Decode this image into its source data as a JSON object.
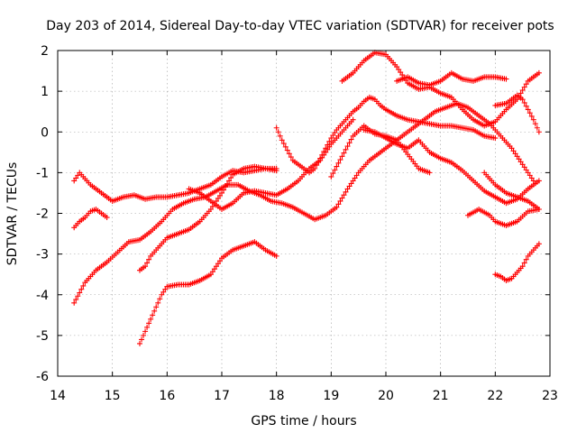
{
  "chart_data": {
    "type": "scatter",
    "title": "Day 203 of 2014, Sidereal Day-to-day VTEC variation (SDTVAR) for receiver pots",
    "xlabel": "GPS time / hours",
    "ylabel": "SDTVAR / TECUs",
    "xlim": [
      14,
      23
    ],
    "ylim": [
      -6,
      2
    ],
    "xticks": [
      "14",
      "15",
      "16",
      "17",
      "18",
      "19",
      "20",
      "21",
      "22",
      "23"
    ],
    "yticks": [
      "-6",
      "-5",
      "-4",
      "-3",
      "-2",
      "-1",
      "0",
      "1",
      "2"
    ],
    "grid": true,
    "marker": "plus",
    "color": "#ff0000",
    "series": [
      {
        "x": [
          14.3,
          14.4,
          14.6,
          14.8,
          15.0,
          15.2,
          15.4,
          15.6,
          15.8,
          16.0,
          16.2,
          16.4,
          16.6,
          16.8,
          17.0,
          17.2,
          17.4,
          17.6,
          17.8,
          18.0
        ],
        "y": [
          -1.2,
          -1.0,
          -1.3,
          -1.5,
          -1.7,
          -1.6,
          -1.55,
          -1.65,
          -1.6,
          -1.6,
          -1.55,
          -1.5,
          -1.4,
          -1.3,
          -1.1,
          -0.95,
          -1.0,
          -0.95,
          -0.9,
          -0.9
        ]
      },
      {
        "x": [
          14.3,
          14.4,
          14.5,
          14.6,
          14.7,
          14.8,
          14.9
        ],
        "y": [
          -2.35,
          -2.2,
          -2.1,
          -1.95,
          -1.9,
          -2.0,
          -2.1
        ]
      },
      {
        "x": [
          14.3,
          14.5,
          14.7,
          14.9,
          15.1,
          15.3,
          15.5,
          15.7,
          15.9,
          16.1,
          16.3,
          16.5,
          16.7,
          16.9,
          17.1,
          17.3,
          17.5,
          17.7,
          17.9,
          18.1,
          18.3,
          18.5,
          18.7,
          18.9,
          19.1,
          19.3,
          19.5,
          19.7,
          19.9,
          20.1,
          20.3,
          20.5,
          20.7,
          20.9,
          21.1,
          21.3,
          21.5,
          21.7,
          21.9,
          22.1,
          22.3,
          22.5,
          22.7
        ],
        "y": [
          -4.2,
          -3.7,
          -3.4,
          -3.2,
          -2.95,
          -2.7,
          -2.65,
          -2.45,
          -2.2,
          -1.9,
          -1.75,
          -1.65,
          -1.6,
          -1.45,
          -1.3,
          -1.3,
          -1.45,
          -1.55,
          -1.7,
          -1.75,
          -1.85,
          -2.0,
          -2.15,
          -2.05,
          -1.85,
          -1.4,
          -1.0,
          -0.7,
          -0.5,
          -0.3,
          -0.1,
          0.1,
          0.3,
          0.5,
          0.6,
          0.7,
          0.6,
          0.4,
          0.2,
          -0.1,
          -0.4,
          -0.8,
          -1.2
        ]
      },
      {
        "x": [
          15.5,
          15.6,
          15.7,
          15.8,
          15.9,
          16.0,
          16.2,
          16.4,
          16.6,
          16.8,
          17.0,
          17.2,
          17.4,
          17.6,
          17.8,
          18.0
        ],
        "y": [
          -3.4,
          -3.3,
          -3.05,
          -2.9,
          -2.75,
          -2.6,
          -2.5,
          -2.4,
          -2.2,
          -1.9,
          -1.5,
          -1.05,
          -0.9,
          -0.85,
          -0.9,
          -0.95
        ]
      },
      {
        "x": [
          15.5,
          15.6,
          15.7,
          15.8,
          15.9,
          16.0,
          16.2,
          16.4,
          16.6,
          16.8,
          17.0,
          17.2,
          17.4,
          17.6,
          17.8,
          18.0
        ],
        "y": [
          -5.2,
          -4.9,
          -4.6,
          -4.3,
          -4.0,
          -3.8,
          -3.75,
          -3.75,
          -3.65,
          -3.5,
          -3.1,
          -2.9,
          -2.8,
          -2.7,
          -2.9,
          -3.05
        ]
      },
      {
        "x": [
          16.4,
          16.6,
          16.8,
          17.0,
          17.2,
          17.4,
          17.6,
          17.8,
          18.0,
          18.2,
          18.4,
          18.6,
          18.8,
          19.0,
          19.2,
          19.4
        ],
        "y": [
          -1.4,
          -1.5,
          -1.7,
          -1.9,
          -1.75,
          -1.5,
          -1.45,
          -1.5,
          -1.55,
          -1.4,
          -1.2,
          -0.9,
          -0.7,
          -0.3,
          0.0,
          0.3
        ]
      },
      {
        "x": [
          18.0,
          18.1,
          18.2,
          18.3,
          18.4,
          18.5,
          18.6,
          18.7,
          18.8,
          18.9,
          19.0,
          19.1,
          19.2,
          19.3,
          19.4,
          19.5,
          19.6,
          19.7,
          19.8,
          19.9,
          20.0,
          20.2,
          20.4,
          20.6,
          20.8,
          21.0,
          21.2,
          21.4,
          21.6,
          21.8,
          22.0
        ],
        "y": [
          0.1,
          -0.2,
          -0.45,
          -0.7,
          -0.8,
          -0.9,
          -1.0,
          -0.9,
          -0.65,
          -0.4,
          -0.15,
          0.05,
          0.2,
          0.35,
          0.5,
          0.6,
          0.75,
          0.85,
          0.8,
          0.65,
          0.55,
          0.4,
          0.3,
          0.25,
          0.2,
          0.15,
          0.15,
          0.1,
          0.05,
          -0.1,
          -0.15
        ]
      },
      {
        "x": [
          19.2,
          19.4,
          19.6,
          19.8,
          20.0,
          20.2,
          20.4,
          20.6,
          20.8,
          21.0,
          21.2,
          21.4,
          21.6,
          21.8,
          22.0,
          22.2,
          22.4,
          22.6,
          22.8
        ],
        "y": [
          1.25,
          1.45,
          1.75,
          1.95,
          1.9,
          1.6,
          1.2,
          1.05,
          1.1,
          0.95,
          0.85,
          0.55,
          0.3,
          0.15,
          0.25,
          0.55,
          0.8,
          1.25,
          1.45
        ]
      },
      {
        "x": [
          20.2,
          20.4,
          20.6,
          20.8,
          21.0,
          21.2,
          21.4,
          21.6,
          21.8,
          22.0,
          22.2
        ],
        "y": [
          1.25,
          1.35,
          1.2,
          1.15,
          1.25,
          1.45,
          1.3,
          1.25,
          1.35,
          1.35,
          1.3
        ]
      },
      {
        "x": [
          22.0,
          22.2,
          22.4,
          22.5,
          22.6,
          22.7,
          22.8
        ],
        "y": [
          0.65,
          0.7,
          0.9,
          0.8,
          0.55,
          0.3,
          0.0
        ]
      },
      {
        "x": [
          19.0,
          19.2,
          19.4,
          19.6,
          19.8,
          20.0,
          20.2,
          20.4,
          20.6,
          20.8
        ],
        "y": [
          -1.1,
          -0.6,
          -0.1,
          0.15,
          -0.05,
          -0.1,
          -0.2,
          -0.55,
          -0.9,
          -1.0
        ]
      },
      {
        "x": [
          19.6,
          19.8,
          20.0,
          20.2,
          20.4,
          20.6,
          20.8,
          21.0,
          21.2,
          21.4,
          21.6,
          21.8,
          22.0,
          22.2,
          22.4,
          22.6,
          22.8
        ],
        "y": [
          0.05,
          0.0,
          -0.15,
          -0.3,
          -0.4,
          -0.2,
          -0.5,
          -0.65,
          -0.75,
          -0.95,
          -1.2,
          -1.45,
          -1.6,
          -1.75,
          -1.65,
          -1.4,
          -1.2
        ]
      },
      {
        "x": [
          21.5,
          21.7,
          21.9,
          22.0,
          22.2,
          22.4,
          22.6,
          22.8
        ],
        "y": [
          -2.05,
          -1.9,
          -2.05,
          -2.2,
          -2.3,
          -2.2,
          -1.95,
          -1.9
        ]
      },
      {
        "x": [
          22.0,
          22.1,
          22.2,
          22.3,
          22.4,
          22.5,
          22.6,
          22.7,
          22.8
        ],
        "y": [
          -3.5,
          -3.55,
          -3.65,
          -3.6,
          -3.45,
          -3.3,
          -3.05,
          -2.9,
          -2.75
        ]
      },
      {
        "x": [
          21.8,
          22.0,
          22.2,
          22.4,
          22.6,
          22.8
        ],
        "y": [
          -1.0,
          -1.3,
          -1.5,
          -1.6,
          -1.7,
          -1.9
        ]
      }
    ]
  }
}
